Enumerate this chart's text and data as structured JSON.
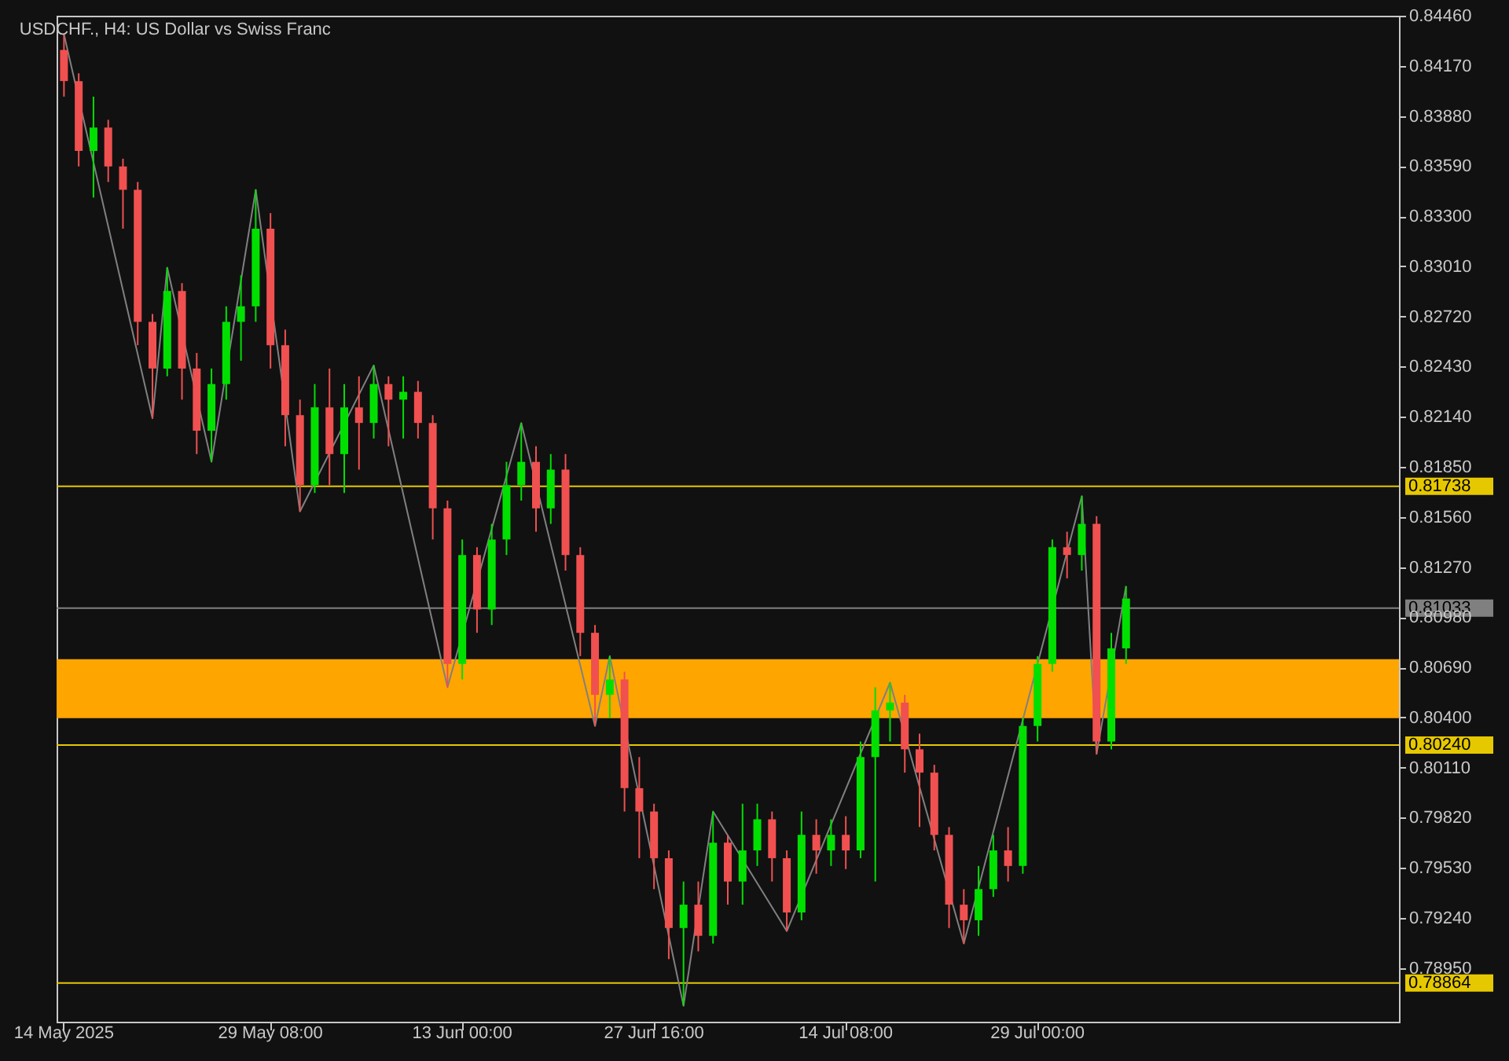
{
  "chart_data": {
    "type": "candlestick",
    "title": "USDCHF., H4:  US Dollar vs Swiss Franc",
    "categories": [
      "14 May 2025",
      null,
      null,
      null,
      null,
      null,
      null,
      null,
      null,
      null,
      null,
      null,
      null,
      null,
      "29 May 08:00",
      null,
      null,
      null,
      null,
      null,
      null,
      null,
      null,
      null,
      null,
      null,
      null,
      "13 Jun 00:00",
      null,
      null,
      null,
      null,
      null,
      null,
      null,
      null,
      null,
      null,
      null,
      null,
      "27 Jun 16:00",
      null,
      null,
      null,
      null,
      null,
      null,
      null,
      null,
      null,
      null,
      null,
      null,
      "14 Jul 08:00",
      null,
      null,
      null,
      null,
      null,
      null,
      null,
      null,
      null,
      null,
      null,
      null,
      "29 Jul 00:00",
      null,
      null,
      null,
      null,
      null,
      null,
      null,
      null,
      null,
      null,
      null,
      null,
      null,
      null,
      null,
      null,
      null,
      null,
      null,
      null,
      null,
      null,
      null,
      null
    ],
    "ohlc": [
      [
        0.84262,
        0.84352,
        0.83992,
        0.84082
      ],
      [
        0.84082,
        0.84127,
        0.83588,
        0.83678
      ],
      [
        0.83678,
        0.83992,
        0.83408,
        0.83813
      ],
      [
        0.83813,
        0.83858,
        0.83498,
        0.83588
      ],
      [
        0.83588,
        0.83633,
        0.83228,
        0.83453
      ],
      [
        0.83453,
        0.83498,
        0.82554,
        0.82689
      ],
      [
        0.82689,
        0.82734,
        0.82131,
        0.82419
      ],
      [
        0.82419,
        0.83003,
        0.82374,
        0.82868
      ],
      [
        0.82868,
        0.82913,
        0.82239,
        0.82419
      ],
      [
        0.82419,
        0.82509,
        0.81924,
        0.82059
      ],
      [
        0.82059,
        0.82419,
        0.81879,
        0.82329
      ],
      [
        0.82329,
        0.82779,
        0.82239,
        0.82689
      ],
      [
        0.82689,
        0.82958,
        0.82464,
        0.82779
      ],
      [
        0.82779,
        0.83453,
        0.82689,
        0.83228
      ],
      [
        0.83228,
        0.83318,
        0.82419,
        0.82554
      ],
      [
        0.82554,
        0.82644,
        0.81969,
        0.82149
      ],
      [
        0.82149,
        0.82239,
        0.81592,
        0.81744
      ],
      [
        0.81744,
        0.82329,
        0.81699,
        0.82194
      ],
      [
        0.82194,
        0.82419,
        0.81744,
        0.81924
      ],
      [
        0.81924,
        0.82329,
        0.81699,
        0.82194
      ],
      [
        0.82194,
        0.82374,
        0.81834,
        0.82104
      ],
      [
        0.82104,
        0.82437,
        0.82014,
        0.82329
      ],
      [
        0.82329,
        0.82374,
        0.81969,
        0.82239
      ],
      [
        0.82239,
        0.82374,
        0.82014,
        0.82284
      ],
      [
        0.82284,
        0.82347,
        0.82014,
        0.82104
      ],
      [
        0.82104,
        0.82149,
        0.8143,
        0.8161
      ],
      [
        0.8161,
        0.81655,
        0.80575,
        0.8071
      ],
      [
        0.8071,
        0.8143,
        0.8062,
        0.8134
      ],
      [
        0.8134,
        0.81385,
        0.8089,
        0.81025
      ],
      [
        0.81025,
        0.8152,
        0.80935,
        0.8143
      ],
      [
        0.8143,
        0.81879,
        0.8134,
        0.81744
      ],
      [
        0.81744,
        0.82104,
        0.81655,
        0.81879
      ],
      [
        0.81879,
        0.81969,
        0.81475,
        0.8161
      ],
      [
        0.8161,
        0.81924,
        0.8152,
        0.81834
      ],
      [
        0.81834,
        0.81924,
        0.8125,
        0.8134
      ],
      [
        0.8134,
        0.81385,
        0.80755,
        0.8089
      ],
      [
        0.8089,
        0.80935,
        0.80351,
        0.80531
      ],
      [
        0.80531,
        0.80755,
        0.80396,
        0.8062
      ],
      [
        0.8062,
        0.80665,
        0.79856,
        0.79991
      ],
      [
        0.79991,
        0.80171,
        0.79586,
        0.79856
      ],
      [
        0.79856,
        0.79901,
        0.79407,
        0.79586
      ],
      [
        0.79586,
        0.79631,
        0.79002,
        0.79182
      ],
      [
        0.79182,
        0.79451,
        0.78732,
        0.79317
      ],
      [
        0.79317,
        0.79451,
        0.79047,
        0.79137
      ],
      [
        0.79137,
        0.79856,
        0.79092,
        0.79676
      ],
      [
        0.79676,
        0.79721,
        0.79317,
        0.79451
      ],
      [
        0.79451,
        0.79901,
        0.79317,
        0.79631
      ],
      [
        0.79631,
        0.79901,
        0.79541,
        0.79811
      ],
      [
        0.79811,
        0.79856,
        0.79451,
        0.79586
      ],
      [
        0.79586,
        0.79631,
        0.79164,
        0.79272
      ],
      [
        0.79272,
        0.79856,
        0.79227,
        0.79721
      ],
      [
        0.79721,
        0.79811,
        0.79496,
        0.79631
      ],
      [
        0.79631,
        0.79811,
        0.79541,
        0.79721
      ],
      [
        0.79721,
        0.79829,
        0.79523,
        0.79631
      ],
      [
        0.79631,
        0.80261,
        0.79586,
        0.80171
      ],
      [
        0.80171,
        0.80575,
        0.79451,
        0.80441
      ],
      [
        0.80441,
        0.80602,
        0.80261,
        0.80486
      ],
      [
        0.80486,
        0.80531,
        0.80081,
        0.80216
      ],
      [
        0.80216,
        0.80306,
        0.79766,
        0.80081
      ],
      [
        0.80081,
        0.80126,
        0.79631,
        0.79721
      ],
      [
        0.79721,
        0.79766,
        0.79182,
        0.79317
      ],
      [
        0.79317,
        0.79407,
        0.79092,
        0.79227
      ],
      [
        0.79227,
        0.79541,
        0.79137,
        0.79407
      ],
      [
        0.79407,
        0.79721,
        0.79362,
        0.79631
      ],
      [
        0.79631,
        0.79766,
        0.79451,
        0.79541
      ],
      [
        0.79541,
        0.80396,
        0.79496,
        0.80351
      ],
      [
        0.80351,
        0.80755,
        0.80261,
        0.8071
      ],
      [
        0.8071,
        0.8143,
        0.80665,
        0.81385
      ],
      [
        0.81385,
        0.81475,
        0.81205,
        0.8134
      ],
      [
        0.8134,
        0.81681,
        0.8125,
        0.8152
      ],
      [
        0.8152,
        0.81565,
        0.80189,
        0.80261
      ],
      [
        0.80261,
        0.8089,
        0.80216,
        0.808
      ],
      [
        0.808,
        0.8116,
        0.8071,
        0.81088
      ],
      null,
      null,
      null,
      null,
      null,
      null,
      null,
      null,
      null,
      null,
      null,
      null,
      null,
      null,
      null,
      null,
      null,
      null
    ],
    "series": [
      {
        "type": "line",
        "color": "#808080",
        "values": [
          0.84352,
          null,
          null,
          null,
          null,
          null,
          0.82131,
          0.83003,
          null,
          null,
          0.81879,
          null,
          null,
          0.83453,
          null,
          null,
          0.81592,
          null,
          null,
          null,
          null,
          0.82437,
          null,
          null,
          null,
          null,
          0.80575,
          null,
          null,
          null,
          null,
          0.82104,
          null,
          null,
          null,
          null,
          0.80351,
          0.80755,
          null,
          null,
          null,
          null,
          0.78732,
          null,
          0.79856,
          null,
          null,
          null,
          null,
          0.79164,
          null,
          null,
          null,
          null,
          null,
          null,
          0.80602,
          null,
          null,
          null,
          null,
          0.79092,
          null,
          null,
          null,
          null,
          null,
          null,
          null,
          0.81681,
          0.80189,
          null,
          0.8116,
          null,
          null,
          null,
          null,
          null,
          null,
          null,
          null,
          null,
          null,
          null,
          null,
          null,
          null,
          null,
          null,
          null,
          null
        ]
      }
    ],
    "ylim": [
      0.7864,
      0.8446
    ],
    "yticks": [
      {
        "value": 0.8446,
        "label": "0.84460"
      },
      {
        "value": 0.8417,
        "label": "0.84170"
      },
      {
        "value": 0.8388,
        "label": "0.83880"
      },
      {
        "value": 0.8359,
        "label": "0.83590"
      },
      {
        "value": 0.833,
        "label": "0.83300"
      },
      {
        "value": 0.8301,
        "label": "0.83010"
      },
      {
        "value": 0.8272,
        "label": "0.82720"
      },
      {
        "value": 0.8243,
        "label": "0.82430"
      },
      {
        "value": 0.8214,
        "label": "0.82140"
      },
      {
        "value": 0.8185,
        "label": "0.81850"
      },
      {
        "value": 0.8156,
        "label": "0.81560"
      },
      {
        "value": 0.8127,
        "label": "0.81270"
      },
      {
        "value": 0.8098,
        "label": "0.80980"
      },
      {
        "value": 0.8069,
        "label": "0.80690"
      },
      {
        "value": 0.804,
        "label": "0.80400"
      },
      {
        "value": 0.8011,
        "label": "0.80110"
      },
      {
        "value": 0.7982,
        "label": "0.79820"
      },
      {
        "value": 0.7953,
        "label": "0.79530"
      },
      {
        "value": 0.7924,
        "label": "0.79240"
      },
      {
        "value": 0.7895,
        "label": "0.78950"
      }
    ],
    "ref_lines": [
      {
        "axis": "y",
        "value": 0.81738,
        "label": "0.81738",
        "color": "#e6c800"
      },
      {
        "axis": "y",
        "value": 0.81033,
        "label": "0.81033",
        "color": "#808080"
      },
      {
        "axis": "y",
        "value": 0.8024,
        "label": "0.80240",
        "color": "#e6c800"
      },
      {
        "axis": "y",
        "value": 0.78864,
        "label": "0.78864",
        "color": "#e6c800"
      }
    ],
    "bands": [
      {
        "axis": "y",
        "from": 0.80396,
        "to": 0.80737,
        "color": "#ffa500"
      }
    ]
  }
}
